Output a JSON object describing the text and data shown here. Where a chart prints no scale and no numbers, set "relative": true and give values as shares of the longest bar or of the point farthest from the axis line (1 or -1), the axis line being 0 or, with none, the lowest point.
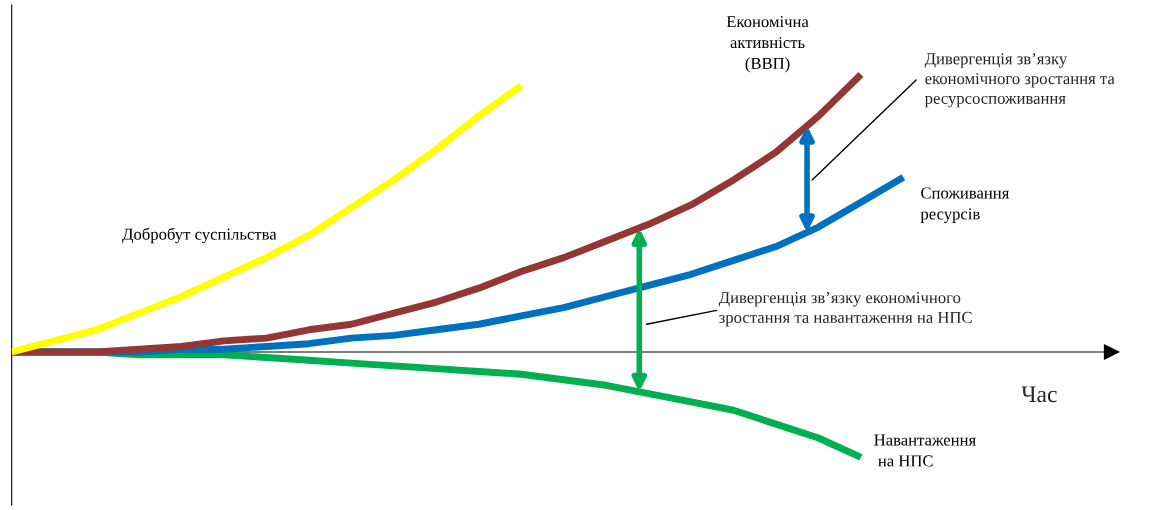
{
  "chart_data": {
    "type": "line",
    "relative": true,
    "xlabel": "Час",
    "categories": [
      null,
      null,
      null,
      null,
      null,
      null,
      null,
      null,
      null,
      null,
      null,
      null,
      null,
      null,
      null,
      null,
      null,
      null,
      null,
      null,
      null,
      null,
      null,
      null,
      null,
      null
    ],
    "marker": "none",
    "line_style": "solid",
    "legend": false,
    "series": [
      {
        "name": "Добробут суспільства",
        "color": "#ffff00",
        "values": [
          0,
          0.04,
          0.08,
          0.14,
          0.2,
          0.27,
          0.34,
          0.42,
          0.52,
          0.62,
          0.73,
          0.85,
          0.96,
          null,
          null,
          null,
          null,
          null,
          null,
          null,
          null,
          null,
          null,
          null,
          null,
          null
        ]
      },
      {
        "name": "Економічна\nактивність\n(ВВП)",
        "color": "#943634",
        "values": [
          0,
          0,
          0,
          0.01,
          0.02,
          0.04,
          0.05,
          0.08,
          0.1,
          0.14,
          0.18,
          0.23,
          0.29,
          0.34,
          0.4,
          0.46,
          0.53,
          0.62,
          0.72,
          0.85,
          1.0,
          null,
          null,
          null,
          null,
          null
        ]
      },
      {
        "name": "Споживання\nресурсів",
        "color": "#0070c0",
        "values": [
          0,
          0,
          0,
          0,
          0.01,
          0.01,
          0.02,
          0.03,
          0.05,
          0.06,
          0.08,
          0.1,
          0.13,
          0.16,
          0.2,
          0.24,
          0.28,
          0.33,
          0.38,
          0.45,
          0.54,
          0.63,
          null,
          null,
          null,
          null
        ]
      },
      {
        "name": "Навантаження\n на НПС",
        "color": "#00b050",
        "values": [
          0,
          0,
          0,
          -0.01,
          -0.01,
          -0.01,
          -0.02,
          -0.03,
          -0.04,
          -0.05,
          -0.06,
          -0.07,
          -0.08,
          -0.1,
          -0.12,
          -0.15,
          -0.18,
          -0.21,
          -0.26,
          -0.31,
          -0.38,
          null,
          null,
          null,
          null,
          null
        ]
      }
    ],
    "annotations": [
      "Дивергенція зв’язку\nекономічного зростання та\nресурсоспоживання",
      "Дивергенція зв’язку економічного\nзростання та навантаження на НПС"
    ]
  }
}
